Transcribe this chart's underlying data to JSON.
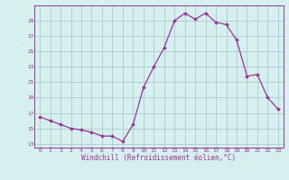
{
  "hours": [
    0,
    1,
    2,
    3,
    4,
    5,
    6,
    7,
    8,
    9,
    10,
    11,
    12,
    13,
    14,
    15,
    16,
    17,
    18,
    19,
    20,
    21,
    22,
    23
  ],
  "values": [
    16.5,
    16.0,
    15.5,
    15.0,
    14.8,
    14.5,
    14.0,
    14.0,
    13.3,
    15.5,
    20.3,
    23.0,
    25.5,
    29.0,
    30.0,
    29.2,
    30.0,
    28.8,
    28.5,
    26.5,
    21.8,
    22.0,
    19.0,
    17.5
  ],
  "line_color": "#993399",
  "marker": "D",
  "marker_size": 2,
  "bg_color": "#d6f0f0",
  "grid_color": "#aacccc",
  "xlabel": "Windchill (Refroidissement éolien,°C)",
  "xlabel_color": "#993399",
  "ylabel_ticks": [
    13,
    15,
    17,
    19,
    21,
    23,
    25,
    27,
    29
  ],
  "xlim": [
    -0.5,
    23.5
  ],
  "ylim": [
    12.5,
    31.0
  ],
  "tick_color": "#993399",
  "spine_color": "#993399"
}
